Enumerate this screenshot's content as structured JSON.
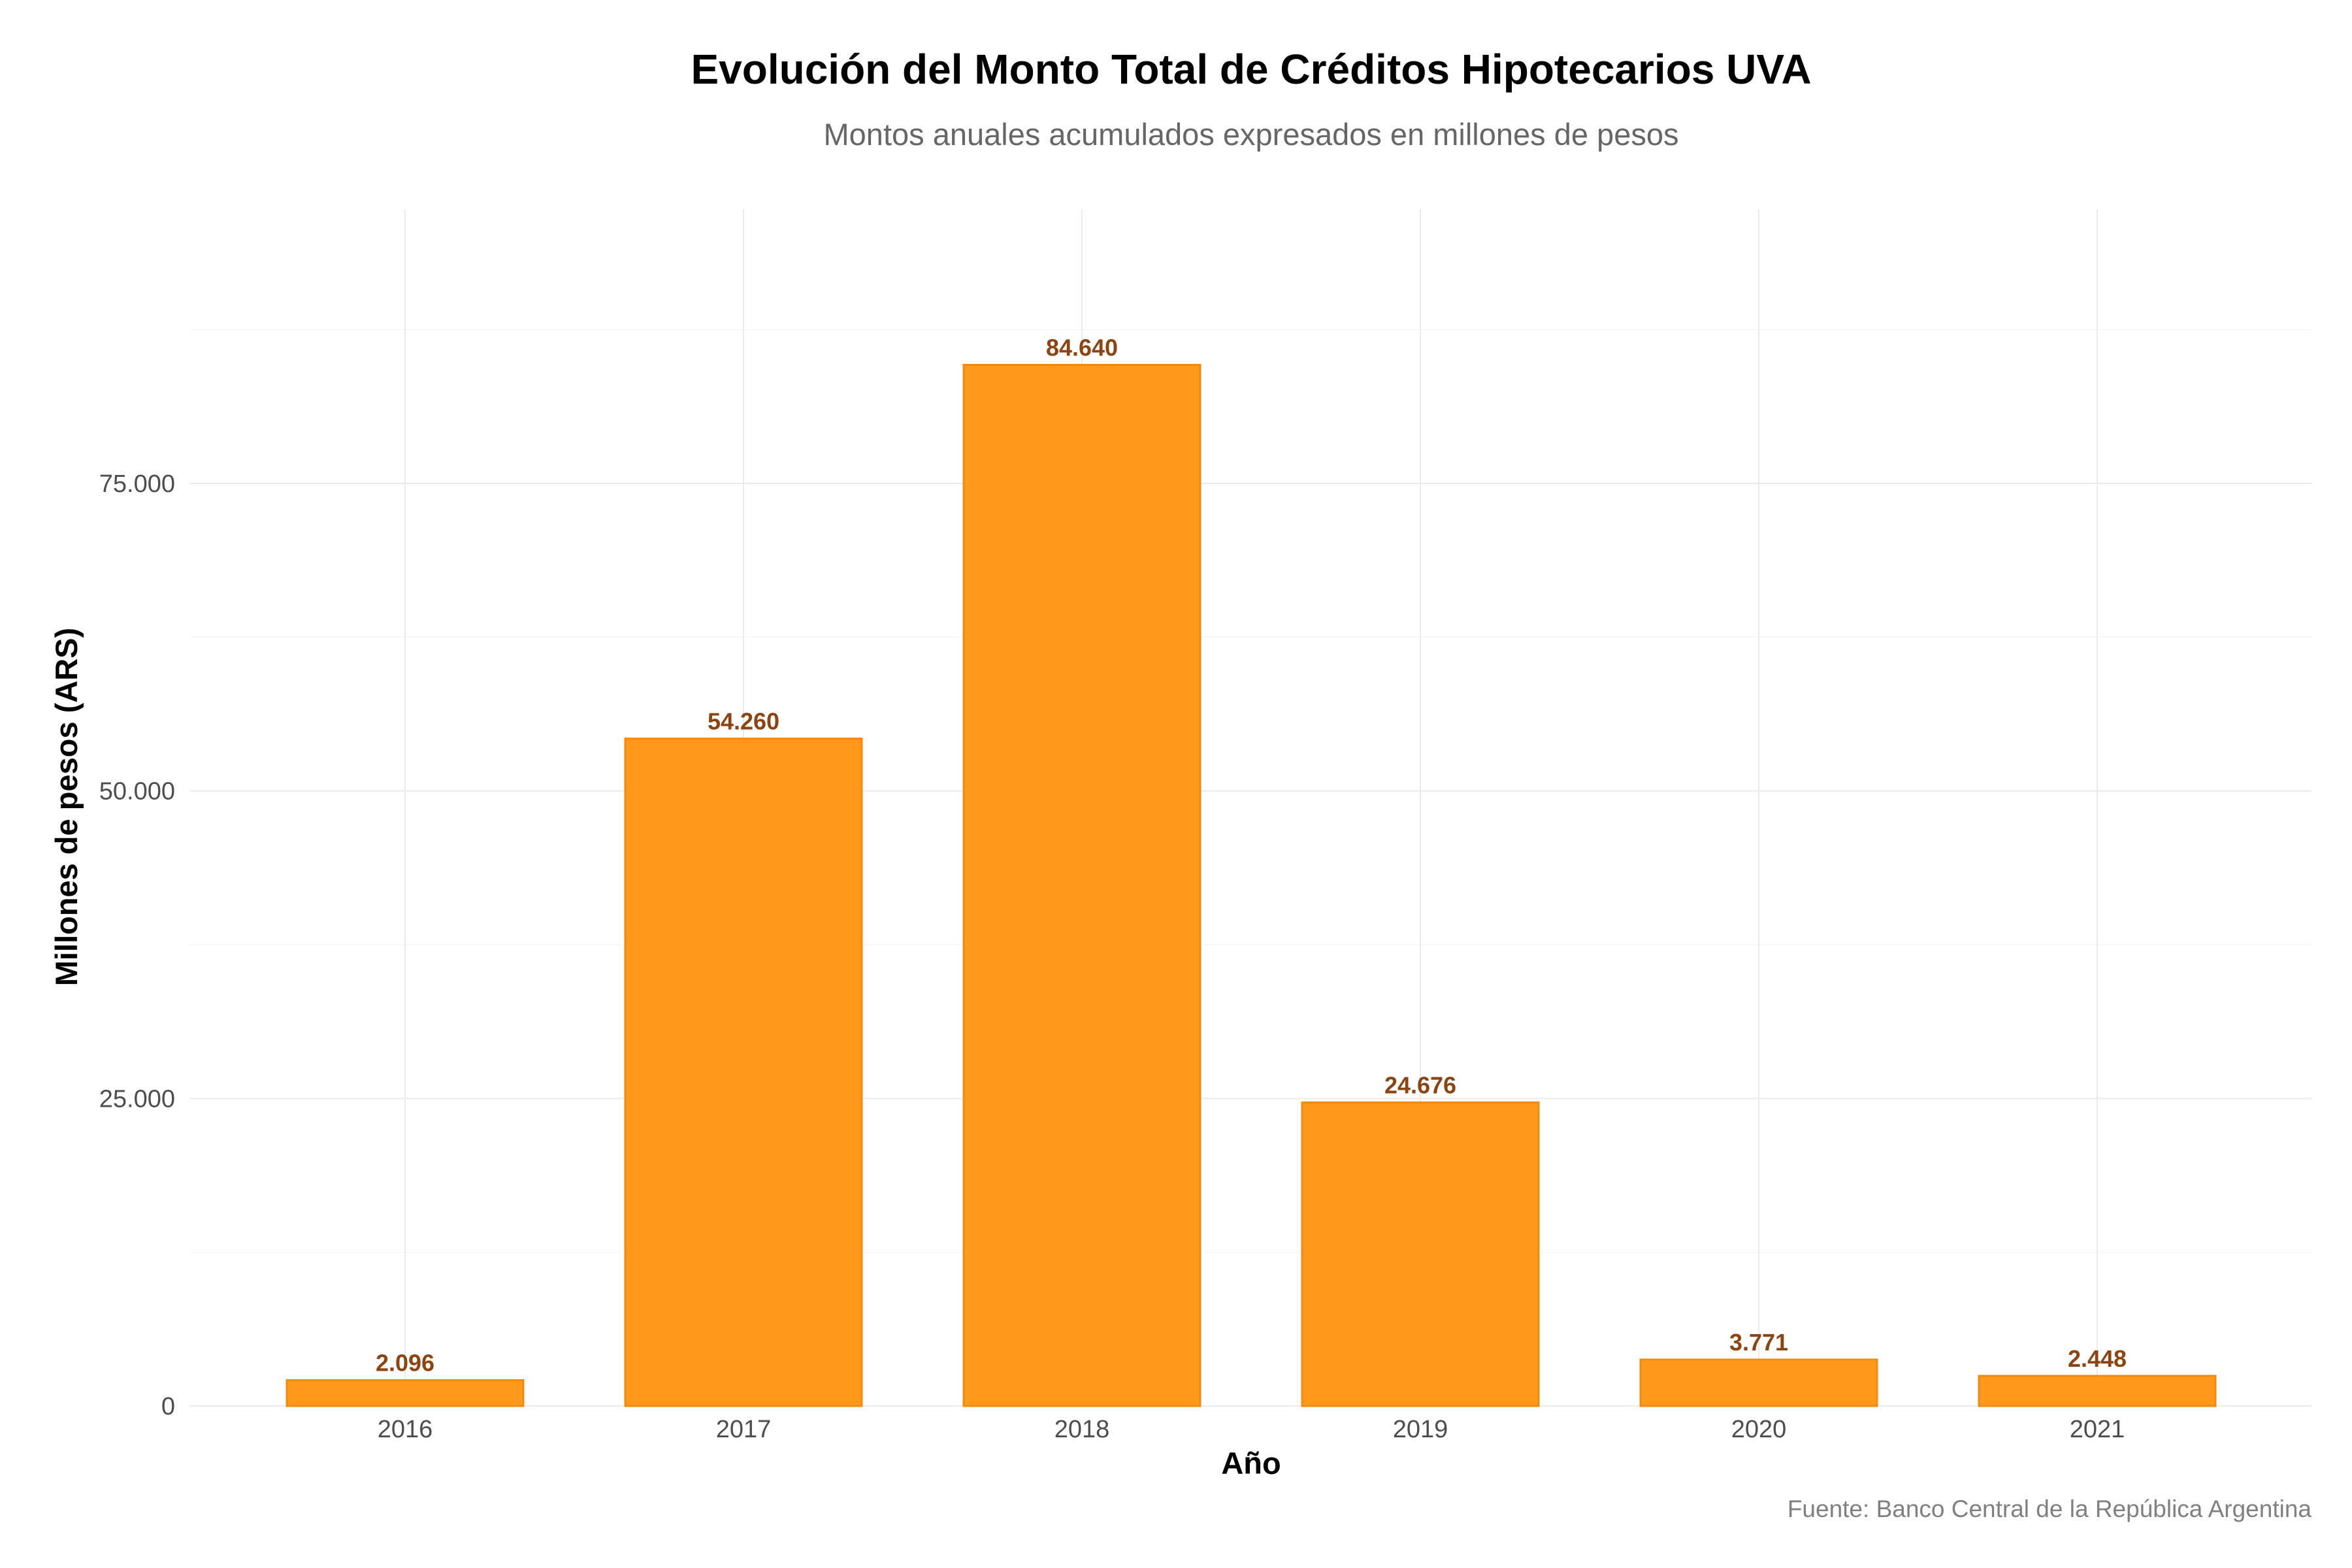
{
  "chart_data": {
    "type": "bar",
    "title": "Evolución del Monto Total de Créditos Hipotecarios UVA",
    "subtitle": "Montos anuales acumulados expresados en millones de pesos",
    "xlabel": "Año",
    "ylabel": "Millones de pesos (ARS)",
    "caption": "Fuente: Banco Central de la República Argentina",
    "categories": [
      "2016",
      "2017",
      "2018",
      "2019",
      "2020",
      "2021"
    ],
    "values": [
      2096,
      54260,
      84640,
      24676,
      3771,
      2448
    ],
    "value_labels": [
      "2.096",
      "54.260",
      "84.640",
      "24.676",
      "3.771",
      "2.448"
    ],
    "ylim": [
      0,
      97000
    ],
    "yticks": [
      0,
      25000,
      50000,
      75000
    ],
    "ytick_labels": [
      "0",
      "25.000",
      "50.000",
      "75.000"
    ],
    "grid": true,
    "colors": {
      "bar_fill": "#FF991C",
      "bar_stroke": "#F28A0F",
      "data_label": "#8B4513"
    }
  }
}
